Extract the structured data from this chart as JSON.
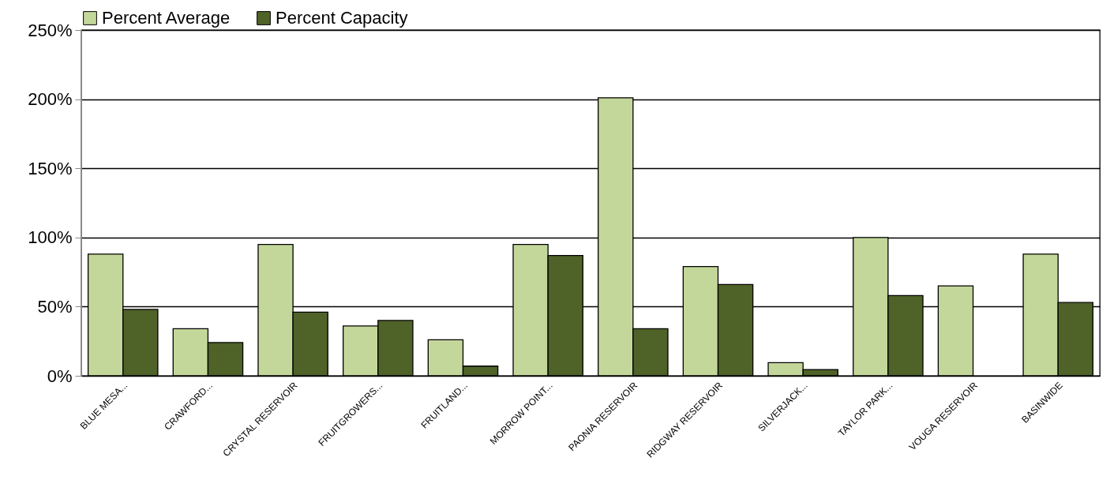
{
  "chart_data": {
    "type": "bar",
    "categories": [
      "BLUE MESA...",
      "CRAWFORD...",
      "CRYSTAL RESERVOIR",
      "FRUITGROWERS...",
      "FRUITLAND...",
      "MORROW POINT...",
      "PAONIA RESERVOIR",
      "RIDGWAY RESERVOIR",
      "SILVERJACK...",
      "TAYLOR PARK...",
      "VOUGA RESERVOIR",
      "BASINWIDE"
    ],
    "series": [
      {
        "name": "Percent Average",
        "color": "#c4d79b",
        "values": [
          88,
          34,
          95,
          36,
          26,
          95,
          201,
          79,
          9.5,
          100,
          65,
          88
        ]
      },
      {
        "name": "Percent Capacity",
        "color": "#4f6228",
        "values": [
          48,
          24,
          46,
          40,
          7,
          87,
          34,
          66,
          4.5,
          58,
          null,
          53
        ]
      }
    ],
    "ylim": [
      0,
      250
    ],
    "yticks": [
      {
        "value": 0,
        "label": "0%"
      },
      {
        "value": 50,
        "label": "50%"
      },
      {
        "value": 100,
        "label": "100%"
      },
      {
        "value": 150,
        "label": "150%"
      },
      {
        "value": 200,
        "label": "200%"
      },
      {
        "value": 250,
        "label": "250%"
      }
    ],
    "grid": "y",
    "legend": "top"
  }
}
